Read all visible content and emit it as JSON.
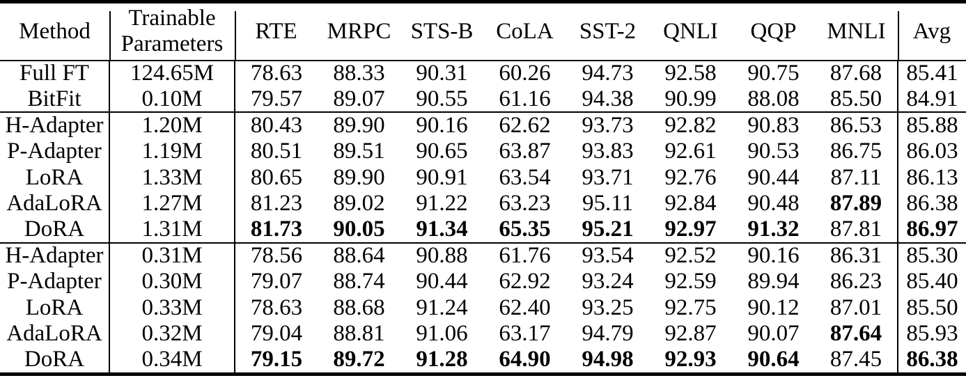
{
  "table": {
    "header": {
      "method": "Method",
      "params": "Trainable\nParameters",
      "tasks": [
        "RTE",
        "MRPC",
        "STS-B",
        "CoLA",
        "SST-2",
        "QNLI",
        "QQP",
        "MNLI"
      ],
      "avg": "Avg"
    },
    "groups": [
      {
        "rows": [
          {
            "method": "Full FT",
            "params": "124.65M",
            "scores": [
              "78.63",
              "88.33",
              "90.31",
              "60.26",
              "94.73",
              "92.58",
              "90.75",
              "87.68"
            ],
            "avg": "85.41",
            "bold_scores": [],
            "bold_avg": false
          },
          {
            "method": "BitFit",
            "params": "0.10M",
            "scores": [
              "79.57",
              "89.07",
              "90.55",
              "61.16",
              "94.38",
              "90.99",
              "88.08",
              "85.50"
            ],
            "avg": "84.91",
            "bold_scores": [],
            "bold_avg": false
          }
        ]
      },
      {
        "rows": [
          {
            "method": "H-Adapter",
            "params": "1.20M",
            "scores": [
              "80.43",
              "89.90",
              "90.16",
              "62.62",
              "93.73",
              "92.82",
              "90.83",
              "86.53"
            ],
            "avg": "85.88",
            "bold_scores": [],
            "bold_avg": false
          },
          {
            "method": "P-Adapter",
            "params": "1.19M",
            "scores": [
              "80.51",
              "89.51",
              "90.65",
              "63.87",
              "93.83",
              "92.61",
              "90.53",
              "86.75"
            ],
            "avg": "86.03",
            "bold_scores": [],
            "bold_avg": false
          },
          {
            "method": "LoRA",
            "params": "1.33M",
            "scores": [
              "80.65",
              "89.90",
              "90.91",
              "63.54",
              "93.71",
              "92.76",
              "90.44",
              "87.11"
            ],
            "avg": "86.13",
            "bold_scores": [],
            "bold_avg": false
          },
          {
            "method": "AdaLoRA",
            "params": "1.27M",
            "scores": [
              "81.23",
              "89.02",
              "91.22",
              "63.23",
              "95.11",
              "92.84",
              "90.48",
              "87.89"
            ],
            "avg": "86.38",
            "bold_scores": [
              7
            ],
            "bold_avg": false
          },
          {
            "method": "DoRA",
            "params": "1.31M",
            "scores": [
              "81.73",
              "90.05",
              "91.34",
              "65.35",
              "95.21",
              "92.97",
              "91.32",
              "87.81"
            ],
            "avg": "86.97",
            "bold_scores": [
              0,
              1,
              2,
              3,
              4,
              5,
              6
            ],
            "bold_avg": true
          }
        ]
      },
      {
        "rows": [
          {
            "method": "H-Adapter",
            "params": "0.31M",
            "scores": [
              "78.56",
              "88.64",
              "90.88",
              "61.76",
              "93.54",
              "92.52",
              "90.16",
              "86.31"
            ],
            "avg": "85.30",
            "bold_scores": [],
            "bold_avg": false
          },
          {
            "method": "P-Adapter",
            "params": "0.30M",
            "scores": [
              "79.07",
              "88.74",
              "90.44",
              "62.92",
              "93.24",
              "92.59",
              "89.94",
              "86.23"
            ],
            "avg": "85.40",
            "bold_scores": [],
            "bold_avg": false
          },
          {
            "method": "LoRA",
            "params": "0.33M",
            "scores": [
              "78.63",
              "88.68",
              "91.24",
              "62.40",
              "93.25",
              "92.75",
              "90.12",
              "87.01"
            ],
            "avg": "85.50",
            "bold_scores": [],
            "bold_avg": false
          },
          {
            "method": "AdaLoRA",
            "params": "0.32M",
            "scores": [
              "79.04",
              "88.81",
              "91.06",
              "63.17",
              "94.79",
              "92.87",
              "90.07",
              "87.64"
            ],
            "avg": "85.93",
            "bold_scores": [
              7
            ],
            "bold_avg": false
          },
          {
            "method": "DoRA",
            "params": "0.34M",
            "scores": [
              "79.15",
              "89.72",
              "91.28",
              "64.90",
              "94.98",
              "92.93",
              "90.64",
              "87.45"
            ],
            "avg": "86.38",
            "bold_scores": [
              0,
              1,
              2,
              3,
              4,
              5,
              6
            ],
            "bold_avg": true
          }
        ]
      }
    ]
  }
}
